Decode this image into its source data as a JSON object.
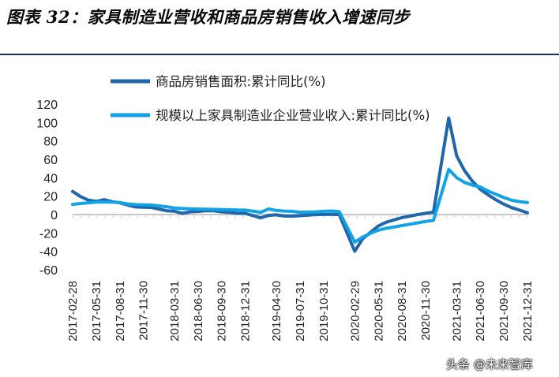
{
  "title": "图表 32：家具制造业营收和商品房销售收入增速同步",
  "watermark": "头条 @未来智库",
  "colors": {
    "series_dark": "#1f66ad",
    "series_light": "#12a3e6",
    "zero_line": "#c8c8c8"
  },
  "chart_data": {
    "type": "line",
    "title": "",
    "xlabel": "",
    "ylabel": "",
    "ylim": [
      -60,
      120
    ],
    "yticks": [
      120,
      100,
      80,
      60,
      40,
      20,
      0,
      -20,
      -40,
      -60
    ],
    "grid": false,
    "legend_position": "top",
    "x_tick_labels": [
      "2017-02-28",
      "2017-05-31",
      "2017-08-31",
      "2017-11-30",
      "2018-03-31",
      "2018-06-30",
      "2018-09-30",
      "2018-12-31",
      "2019-04-30",
      "2019-07-31",
      "2019-10-31",
      "2020-02-29",
      "2020-05-31",
      "2020-08-31",
      "2020-11-30",
      "2021-03-31",
      "2021-06-30",
      "2021-09-30",
      "2021-12-31"
    ],
    "x": [
      "2017-02-28",
      "2017-05-31",
      "2017-08-31",
      "2017-11-30",
      "2018-03-31",
      "2018-06-30",
      "2018-09-30",
      "2018-12-31",
      "2019-04-30",
      "2019-07-31",
      "2019-10-31",
      "2020-02-29",
      "2020-05-31",
      "2020-08-31",
      "2020-11-30",
      "2021-03-31",
      "2021-06-30",
      "2021-09-30",
      "2021-12-31"
    ],
    "series": [
      {
        "name": "商品房销售面积:累计同比(%)",
        "points": [
          [
            "2017-02-28",
            25.1
          ],
          [
            "2017-03-31",
            19.5
          ],
          [
            "2017-04-30",
            15.7
          ],
          [
            "2017-05-31",
            14.3
          ],
          [
            "2017-06-30",
            16.1
          ],
          [
            "2017-07-31",
            14.0
          ],
          [
            "2017-08-31",
            12.7
          ],
          [
            "2017-09-30",
            10.3
          ],
          [
            "2017-10-31",
            8.2
          ],
          [
            "2017-11-30",
            7.9
          ],
          [
            "2017-12-31",
            7.7
          ],
          [
            "2018-02-28",
            4.1
          ],
          [
            "2018-03-31",
            3.6
          ],
          [
            "2018-04-30",
            1.3
          ],
          [
            "2018-05-31",
            2.9
          ],
          [
            "2018-06-30",
            3.3
          ],
          [
            "2018-07-31",
            4.2
          ],
          [
            "2018-08-31",
            4.0
          ],
          [
            "2018-09-30",
            2.9
          ],
          [
            "2018-10-31",
            2.2
          ],
          [
            "2018-11-30",
            1.4
          ],
          [
            "2018-12-31",
            1.3
          ],
          [
            "2019-02-28",
            -3.6
          ],
          [
            "2019-03-31",
            -0.9
          ],
          [
            "2019-04-30",
            -0.3
          ],
          [
            "2019-05-31",
            -1.6
          ],
          [
            "2019-06-30",
            -1.8
          ],
          [
            "2019-07-31",
            -1.3
          ],
          [
            "2019-08-31",
            -0.6
          ],
          [
            "2019-09-30",
            -0.1
          ],
          [
            "2019-10-31",
            0.1
          ],
          [
            "2019-11-30",
            0.2
          ],
          [
            "2019-12-31",
            -0.1
          ],
          [
            "2020-02-29",
            -39.9
          ],
          [
            "2020-03-31",
            -26.3
          ],
          [
            "2020-04-30",
            -19.3
          ],
          [
            "2020-05-31",
            -12.3
          ],
          [
            "2020-06-30",
            -8.4
          ],
          [
            "2020-07-31",
            -5.8
          ],
          [
            "2020-08-31",
            -3.3
          ],
          [
            "2020-09-30",
            -1.8
          ],
          [
            "2020-10-31",
            0.0
          ],
          [
            "2020-11-30",
            1.3
          ],
          [
            "2020-12-31",
            2.6
          ],
          [
            "2021-02-28",
            104.9
          ],
          [
            "2021-03-31",
            63.8
          ],
          [
            "2021-04-30",
            48.1
          ],
          [
            "2021-05-31",
            36.3
          ],
          [
            "2021-06-30",
            27.7
          ],
          [
            "2021-07-31",
            21.5
          ],
          [
            "2021-08-31",
            15.9
          ],
          [
            "2021-09-30",
            11.3
          ],
          [
            "2021-10-31",
            7.5
          ],
          [
            "2021-11-30",
            4.8
          ],
          [
            "2021-12-31",
            1.9
          ]
        ]
      },
      {
        "name": "规模以上家具制造业企业营业收入:累计同比(%)",
        "points": [
          [
            "2017-02-28",
            11.0
          ],
          [
            "2017-03-31",
            12.0
          ],
          [
            "2017-04-30",
            12.8
          ],
          [
            "2017-05-31",
            13.5
          ],
          [
            "2017-06-30",
            13.6
          ],
          [
            "2017-07-31",
            13.4
          ],
          [
            "2017-08-31",
            13.0
          ],
          [
            "2017-09-30",
            11.5
          ],
          [
            "2017-10-31",
            10.8
          ],
          [
            "2017-11-30",
            10.5
          ],
          [
            "2017-12-31",
            10.3
          ],
          [
            "2018-02-28",
            8.5
          ],
          [
            "2018-03-31",
            7.0
          ],
          [
            "2018-04-30",
            6.5
          ],
          [
            "2018-05-31",
            6.2
          ],
          [
            "2018-06-30",
            6.0
          ],
          [
            "2018-07-31",
            5.8
          ],
          [
            "2018-08-31",
            5.6
          ],
          [
            "2018-09-30",
            5.4
          ],
          [
            "2018-10-31",
            5.2
          ],
          [
            "2018-11-30",
            4.9
          ],
          [
            "2018-12-31",
            4.8
          ],
          [
            "2019-02-28",
            2.5
          ],
          [
            "2019-03-31",
            6.0
          ],
          [
            "2019-04-30",
            4.5
          ],
          [
            "2019-05-31",
            3.8
          ],
          [
            "2019-06-30",
            3.5
          ],
          [
            "2019-07-31",
            2.5
          ],
          [
            "2019-08-31",
            2.7
          ],
          [
            "2019-09-30",
            2.9
          ],
          [
            "2019-10-31",
            3.5
          ],
          [
            "2019-11-30",
            3.9
          ],
          [
            "2019-12-31",
            3.2
          ],
          [
            "2020-02-29",
            -30.0
          ],
          [
            "2020-03-31",
            -24.5
          ],
          [
            "2020-04-30",
            -20.5
          ],
          [
            "2020-05-31",
            -17.0
          ],
          [
            "2020-06-30",
            -15.0
          ],
          [
            "2020-07-31",
            -13.5
          ],
          [
            "2020-08-31",
            -12.0
          ],
          [
            "2020-09-30",
            -10.5
          ],
          [
            "2020-10-31",
            -9.0
          ],
          [
            "2020-11-30",
            -7.5
          ],
          [
            "2020-12-31",
            -6.3
          ],
          [
            "2021-02-28",
            49.0
          ],
          [
            "2021-03-31",
            40.0
          ],
          [
            "2021-04-30",
            35.0
          ],
          [
            "2021-05-31",
            32.0
          ],
          [
            "2021-06-30",
            30.0
          ],
          [
            "2021-07-31",
            25.5
          ],
          [
            "2021-08-31",
            22.0
          ],
          [
            "2021-09-30",
            18.5
          ],
          [
            "2021-10-31",
            15.5
          ],
          [
            "2021-11-30",
            14.0
          ],
          [
            "2021-12-31",
            13.0
          ]
        ]
      }
    ]
  }
}
